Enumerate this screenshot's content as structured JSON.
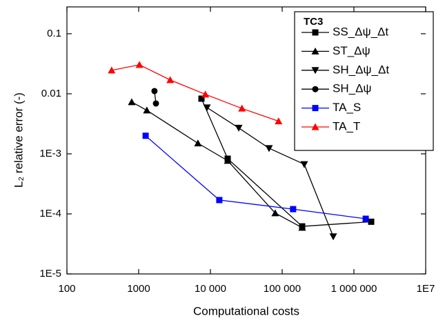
{
  "chart_data": {
    "type": "line",
    "x_label": "Computational costs",
    "y_label": "L₂ relative error (-)",
    "legend_title": "TC3",
    "legend_position": "upper right",
    "xscale": "log",
    "yscale": "log",
    "xlim": [
      100,
      10000000
    ],
    "ylim": [
      1e-05,
      0.28
    ],
    "xticks": [
      100,
      1000,
      {
        "value": 10000,
        "label": "10 000"
      },
      {
        "value": 100000,
        "label": "100 000"
      },
      {
        "value": 1000000,
        "label": "1 000 000"
      },
      {
        "value": 10000000,
        "label": "1E7"
      }
    ],
    "yticks": [
      {
        "value": 1e-05,
        "label": "1E-5"
      },
      {
        "value": 0.0001,
        "label": "1E-4"
      },
      {
        "value": 0.001,
        "label": "1E-3"
      },
      0.01,
      0.1
    ],
    "series": [
      {
        "name": "SS_Δψ_Δt",
        "color": "#000000",
        "marker": "square",
        "x": [
          7500,
          17400,
          190000,
          1740000
        ],
        "values": [
          0.0083,
          0.00083,
          6.2e-05,
          7.4e-05
        ]
      },
      {
        "name": "ST_Δψ",
        "color": "#000000",
        "marker": "triangle-up",
        "x": [
          800,
          1300,
          6700,
          17400,
          80000,
          190000
        ],
        "values": [
          0.0073,
          0.0053,
          0.0015,
          0.00077,
          0.000103,
          5.9e-05
        ]
      },
      {
        "name": "SH_Δψ_Δt",
        "color": "#000000",
        "marker": "triangle-down",
        "x": [
          8950,
          24800,
          65600,
          203000,
          515000
        ],
        "values": [
          0.0059,
          0.0027,
          0.00124,
          0.00067,
          4.2e-05
        ]
      },
      {
        "name": "SH_Δψ",
        "color": "#000000",
        "marker": "circle",
        "x": [
          1660,
          1740
        ],
        "values": [
          0.0111,
          0.0069
        ]
      },
      {
        "name": "TA_S",
        "color": "#0000ff",
        "marker": "square",
        "x": [
          1250,
          13300,
          142000,
          1460000
        ],
        "values": [
          0.002,
          0.00017,
          0.00012,
          8.3e-05
        ]
      },
      {
        "name": "TA_T",
        "color": "#ff0000",
        "marker": "triangle-up",
        "x": [
          420,
          1025,
          2750,
          8500,
          27500,
          89000
        ],
        "values": [
          0.0246,
          0.0304,
          0.017,
          0.0098,
          0.0057,
          0.0035
        ]
      }
    ]
  }
}
